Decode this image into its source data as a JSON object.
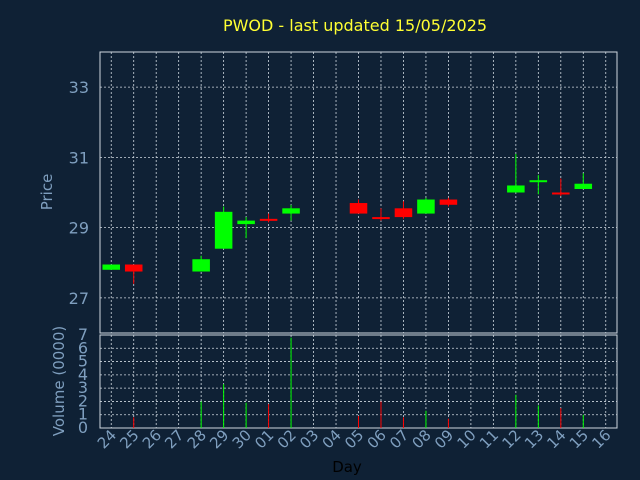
{
  "chart_data": {
    "type": "candlestick",
    "title": "PWOD - last updated 15/05/2025",
    "xlabel": "Day",
    "ylabel": "Price",
    "volume_label": "Volume (0000)",
    "grid": true,
    "x_tick_labels": [
      "24",
      "25",
      "26",
      "27",
      "28",
      "29",
      "30",
      "01",
      "02",
      "03",
      "04",
      "05",
      "06",
      "07",
      "08",
      "09",
      "10",
      "11",
      "12",
      "13",
      "14",
      "15",
      "16"
    ],
    "price_axis": {
      "ylim": [
        26.0,
        34.0
      ],
      "ticks": [
        27,
        29,
        31,
        33
      ]
    },
    "volume_axis": {
      "ylim": [
        0,
        7
      ],
      "ticks": [
        0,
        1,
        2,
        3,
        4,
        5,
        6,
        7
      ]
    },
    "candles": [
      {
        "day": "24",
        "open": 27.8,
        "close": 27.95,
        "high": 27.95,
        "low": 27.8,
        "volume": 0.0
      },
      {
        "day": "25",
        "open": 27.95,
        "close": 27.75,
        "high": 27.95,
        "low": 27.4,
        "volume": 0.8
      },
      {
        "day": "28",
        "open": 27.75,
        "close": 28.1,
        "high": 28.2,
        "low": 27.75,
        "volume": 2.0
      },
      {
        "day": "29",
        "open": 28.4,
        "close": 29.45,
        "high": 29.6,
        "low": 28.4,
        "volume": 3.3
      },
      {
        "day": "30",
        "open": 29.1,
        "close": 29.2,
        "high": 29.3,
        "low": 28.7,
        "volume": 1.9
      },
      {
        "day": "01",
        "open": 29.25,
        "close": 29.2,
        "high": 29.4,
        "low": 29.15,
        "volume": 1.8
      },
      {
        "day": "02",
        "open": 29.4,
        "close": 29.55,
        "high": 29.65,
        "low": 29.2,
        "volume": 6.8
      },
      {
        "day": "05",
        "open": 29.7,
        "close": 29.4,
        "high": 29.8,
        "low": 29.4,
        "volume": 0.9
      },
      {
        "day": "06",
        "open": 29.3,
        "close": 29.25,
        "high": 29.55,
        "low": 29.2,
        "volume": 2.0
      },
      {
        "day": "07",
        "open": 29.55,
        "close": 29.3,
        "high": 29.75,
        "low": 29.25,
        "volume": 0.8
      },
      {
        "day": "08",
        "open": 29.4,
        "close": 29.8,
        "high": 29.85,
        "low": 29.4,
        "volume": 1.3
      },
      {
        "day": "09",
        "open": 29.8,
        "close": 29.65,
        "high": 29.85,
        "low": 29.6,
        "volume": 0.7
      },
      {
        "day": "12",
        "open": 30.0,
        "close": 30.2,
        "high": 31.1,
        "low": 30.0,
        "volume": 2.5
      },
      {
        "day": "13",
        "open": 30.3,
        "close": 30.35,
        "high": 30.5,
        "low": 29.95,
        "volume": 1.7
      },
      {
        "day": "14",
        "open": 30.0,
        "close": 29.95,
        "high": 30.4,
        "low": 29.9,
        "volume": 1.5
      },
      {
        "day": "15",
        "open": 30.1,
        "close": 30.25,
        "high": 30.55,
        "low": 30.1,
        "volume": 1.0
      }
    ]
  },
  "colors": {
    "background": "#0f2135",
    "up": "#00ff00",
    "down": "#ff0000",
    "grid": "#cfd8e0",
    "axes": "#cfd8e0",
    "text": "#7f9fbf",
    "title": "#ffff33"
  }
}
